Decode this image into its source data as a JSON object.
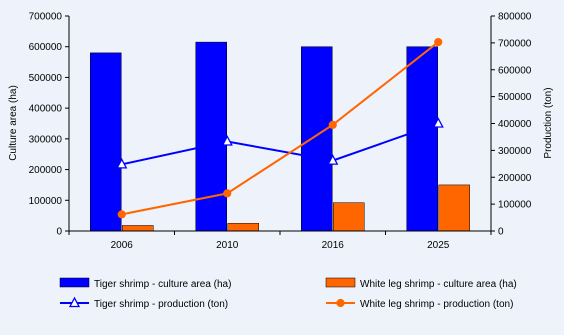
{
  "chart_data": {
    "type": "bar",
    "categories": [
      "2006",
      "2010",
      "2016",
      "2025"
    ],
    "ylabel": "Culture area  (ha)",
    "y2label": "Production (ton)",
    "ylim": [
      0,
      700000
    ],
    "y2lim": [
      0,
      800000
    ],
    "yticks": [
      "0",
      "100000",
      "200000",
      "300000",
      "400000",
      "500000",
      "600000",
      "700000"
    ],
    "y2ticks": [
      "0",
      "100000",
      "200000",
      "300000",
      "400000",
      "500000",
      "600000",
      "700000",
      "800000"
    ],
    "grid": false,
    "legend_position": "bottom",
    "series": [
      {
        "name": "Tiger shrimp - culture area (ha)",
        "kind": "bar",
        "axis": "left",
        "color": "#0000ff",
        "marker": "none",
        "values": [
          580000,
          615000,
          600000,
          600000
        ]
      },
      {
        "name": "White leg shrimp - culture area (ha)",
        "kind": "bar",
        "axis": "left",
        "color": "#ff6600",
        "marker": "none",
        "values": [
          18000,
          25000,
          92000,
          150000
        ]
      },
      {
        "name": "Tiger shrimp - production (ton)",
        "kind": "line",
        "axis": "right",
        "color": "#0000ff",
        "marker": "triangle",
        "values": [
          248000,
          333000,
          262000,
          400000
        ]
      },
      {
        "name": "White leg shrimp - production (ton)",
        "kind": "line",
        "axis": "right",
        "color": "#ff6600",
        "marker": "circle",
        "values": [
          62000,
          140000,
          395000,
          703000
        ]
      }
    ]
  }
}
